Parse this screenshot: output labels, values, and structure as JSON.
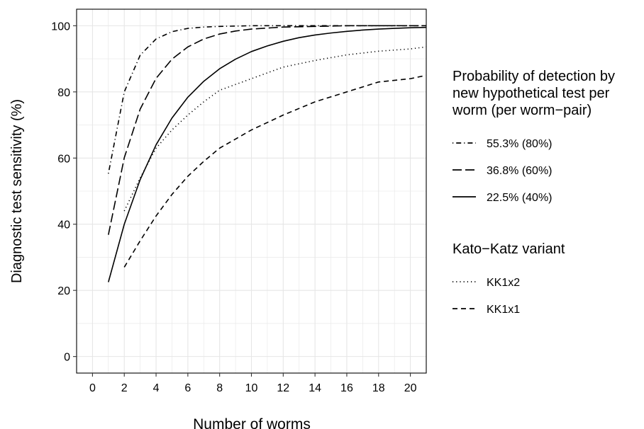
{
  "chart_data": {
    "type": "line",
    "xlabel": "Number of worms",
    "ylabel": "Diagnostic test sensitivity (%)",
    "xlim": [
      -1,
      21
    ],
    "ylim": [
      -5,
      105
    ],
    "x_ticks": [
      0,
      2,
      4,
      6,
      8,
      10,
      12,
      14,
      16,
      18,
      20
    ],
    "y_ticks": [
      0,
      20,
      40,
      60,
      80,
      100
    ],
    "grid": true,
    "legend_position": "right",
    "legends": [
      {
        "title": "Probability of detection by new hypothetical test per worm (per worm−pair)",
        "title_lines": [
          "Probability of detection by",
          "new hypothetical test per",
          "worm (per worm−pair)"
        ],
        "entries": [
          {
            "label": "55.3% (80%)",
            "series": "s55"
          },
          {
            "label": "36.8% (60%)",
            "series": "s36"
          },
          {
            "label": "22.5% (40%)",
            "series": "s22"
          }
        ]
      },
      {
        "title": "Kato−Katz variant",
        "title_lines": [
          "Kato−Katz variant"
        ],
        "entries": [
          {
            "label": "KK1x2",
            "series": "kk2"
          },
          {
            "label": "KK1x1",
            "series": "kk1"
          }
        ]
      }
    ],
    "series": [
      {
        "key": "s55",
        "name": "55.3% (80%)",
        "dash": "dotdash",
        "x": [
          1,
          2,
          3,
          4,
          5,
          6,
          7,
          8,
          10,
          12,
          14,
          16,
          18,
          21
        ],
        "y": [
          55.3,
          80.0,
          91.1,
          96.0,
          98.2,
          99.2,
          99.6,
          99.8,
          100,
          100,
          100,
          100,
          100,
          100
        ]
      },
      {
        "key": "s36",
        "name": "36.8% (60%)",
        "dash": "longdash",
        "x": [
          1,
          2,
          3,
          4,
          5,
          6,
          7,
          8,
          9,
          10,
          12,
          14,
          16,
          18,
          21
        ],
        "y": [
          36.8,
          60.1,
          74.8,
          84.1,
          89.9,
          93.6,
          96.0,
          97.5,
          98.4,
          99.0,
          99.6,
          99.8,
          100,
          100,
          100
        ]
      },
      {
        "key": "s22",
        "name": "22.5% (40%)",
        "dash": "solid",
        "x": [
          1,
          2,
          3,
          4,
          5,
          6,
          7,
          8,
          9,
          10,
          11,
          12,
          13,
          14,
          15,
          16,
          17,
          18,
          19,
          20,
          21
        ],
        "y": [
          22.5,
          40.0,
          53.5,
          64.0,
          72.1,
          78.4,
          83.2,
          87.0,
          89.9,
          92.2,
          93.9,
          95.3,
          96.4,
          97.2,
          97.8,
          98.3,
          98.7,
          99.0,
          99.2,
          99.4,
          99.5
        ]
      },
      {
        "key": "kk2",
        "name": "KK1x2",
        "dash": "dotted",
        "x": [
          2,
          3,
          4,
          5,
          6,
          7,
          8,
          10,
          12,
          14,
          16,
          18,
          20,
          21
        ],
        "y": [
          44.0,
          54.0,
          63.0,
          68.5,
          73.0,
          77.0,
          80.5,
          84.0,
          87.5,
          89.5,
          91.2,
          92.3,
          93.0,
          93.6
        ]
      },
      {
        "key": "kk1",
        "name": "KK1x1",
        "dash": "dashed",
        "x": [
          2,
          3,
          4,
          5,
          6,
          7,
          8,
          10,
          12,
          14,
          16,
          18,
          20,
          21
        ],
        "y": [
          27.0,
          35.0,
          42.5,
          49.0,
          54.5,
          59.0,
          63.0,
          68.5,
          73.0,
          77.0,
          80.0,
          83.0,
          84.0,
          85.0
        ]
      }
    ]
  }
}
